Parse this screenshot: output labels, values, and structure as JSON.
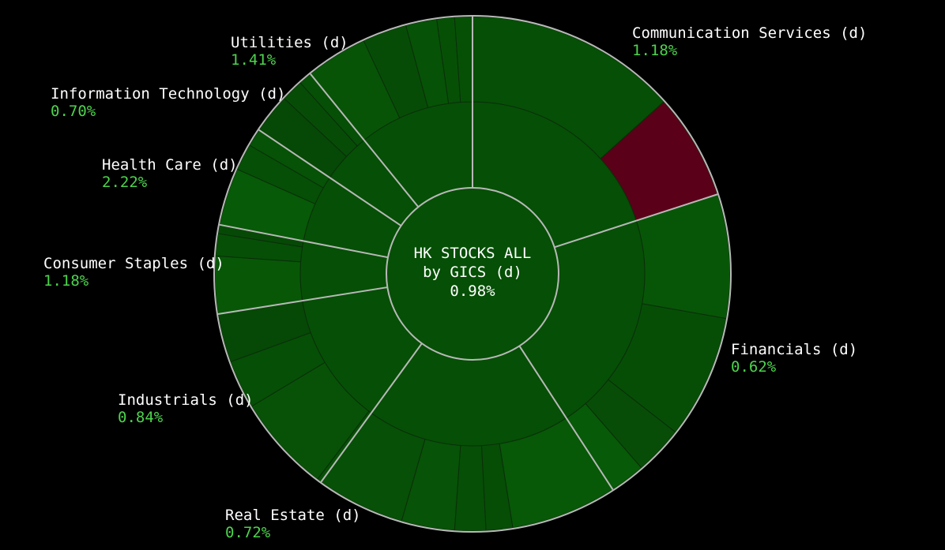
{
  "chart_data": {
    "type": "sunburst",
    "center": {
      "line1": "HK STOCKS ALL",
      "line2": "by GICS (d)",
      "value": "0.98%"
    },
    "colors": {
      "background": "#000000",
      "positive_dark": "#064f06",
      "negative": "#5a0018",
      "separator": "#b8b8b8",
      "label_value": "#4cd44c",
      "label_name": "#ffffff"
    },
    "sectors": [
      {
        "name": "Communication Services (d)",
        "change": "1.18%",
        "start": 0,
        "end": 72,
        "leaves": [
          {
            "start": 0,
            "end": 48,
            "color": "#064f06"
          },
          {
            "start": 48,
            "end": 72,
            "color": "#5a0018"
          }
        ]
      },
      {
        "name": "Financials (d)",
        "change": "0.62%",
        "start": 72,
        "end": 147,
        "leaves": [
          {
            "start": 72,
            "end": 100,
            "color": "#075607"
          },
          {
            "start": 100,
            "end": 128,
            "color": "#064e06"
          },
          {
            "start": 128,
            "end": 139,
            "color": "#074d07"
          },
          {
            "start": 139,
            "end": 147,
            "color": "#075a07"
          }
        ]
      },
      {
        "name": "Real Estate (d)",
        "change": "0.72%",
        "start": 147,
        "end": 216,
        "leaves": [
          {
            "start": 147,
            "end": 171,
            "color": "#075807"
          },
          {
            "start": 171,
            "end": 177,
            "color": "#064d06"
          },
          {
            "start": 177,
            "end": 184,
            "color": "#064f06"
          },
          {
            "start": 184,
            "end": 196,
            "color": "#075307"
          },
          {
            "start": 196,
            "end": 216,
            "color": "#075007"
          }
        ]
      },
      {
        "name": "Industrials (d)",
        "change": "0.84%",
        "start": 216,
        "end": 261,
        "leaves": [
          {
            "start": 216,
            "end": 217,
            "color": "#065006"
          },
          {
            "start": 217,
            "end": 239,
            "color": "#075207"
          },
          {
            "start": 239,
            "end": 250,
            "color": "#064f06"
          },
          {
            "start": 250,
            "end": 261,
            "color": "#064806"
          }
        ]
      },
      {
        "name": "Consumer Staples (d)",
        "change": "1.18%",
        "start": 261,
        "end": 281,
        "leaves": [
          {
            "start": 261,
            "end": 274,
            "color": "#075707"
          },
          {
            "start": 274,
            "end": 279,
            "color": "#064f06"
          },
          {
            "start": 279,
            "end": 281,
            "color": "#064906"
          }
        ]
      },
      {
        "name": "Health Care (d)",
        "change": "2.22%",
        "start": 281,
        "end": 304,
        "leaves": [
          {
            "start": 281,
            "end": 294,
            "color": "#075a07"
          },
          {
            "start": 294,
            "end": 300,
            "color": "#064f06"
          },
          {
            "start": 300,
            "end": 304,
            "color": "#065206"
          }
        ]
      },
      {
        "name": "Information Technology (d)",
        "change": "0.70%",
        "start": 304,
        "end": 321,
        "leaves": [
          {
            "start": 304,
            "end": 313,
            "color": "#064806"
          },
          {
            "start": 313,
            "end": 318,
            "color": "#064c06"
          },
          {
            "start": 318,
            "end": 321,
            "color": "#064f06"
          }
        ]
      },
      {
        "name": "Utilities (d)",
        "change": "1.41%",
        "start": 321,
        "end": 360,
        "leaves": [
          {
            "start": 321,
            "end": 335,
            "color": "#075407"
          },
          {
            "start": 335,
            "end": 345,
            "color": "#064c06"
          },
          {
            "start": 345,
            "end": 352,
            "color": "#065206"
          },
          {
            "start": 352,
            "end": 356,
            "color": "#065006"
          },
          {
            "start": 356,
            "end": 360,
            "color": "#065006"
          }
        ]
      }
    ]
  }
}
